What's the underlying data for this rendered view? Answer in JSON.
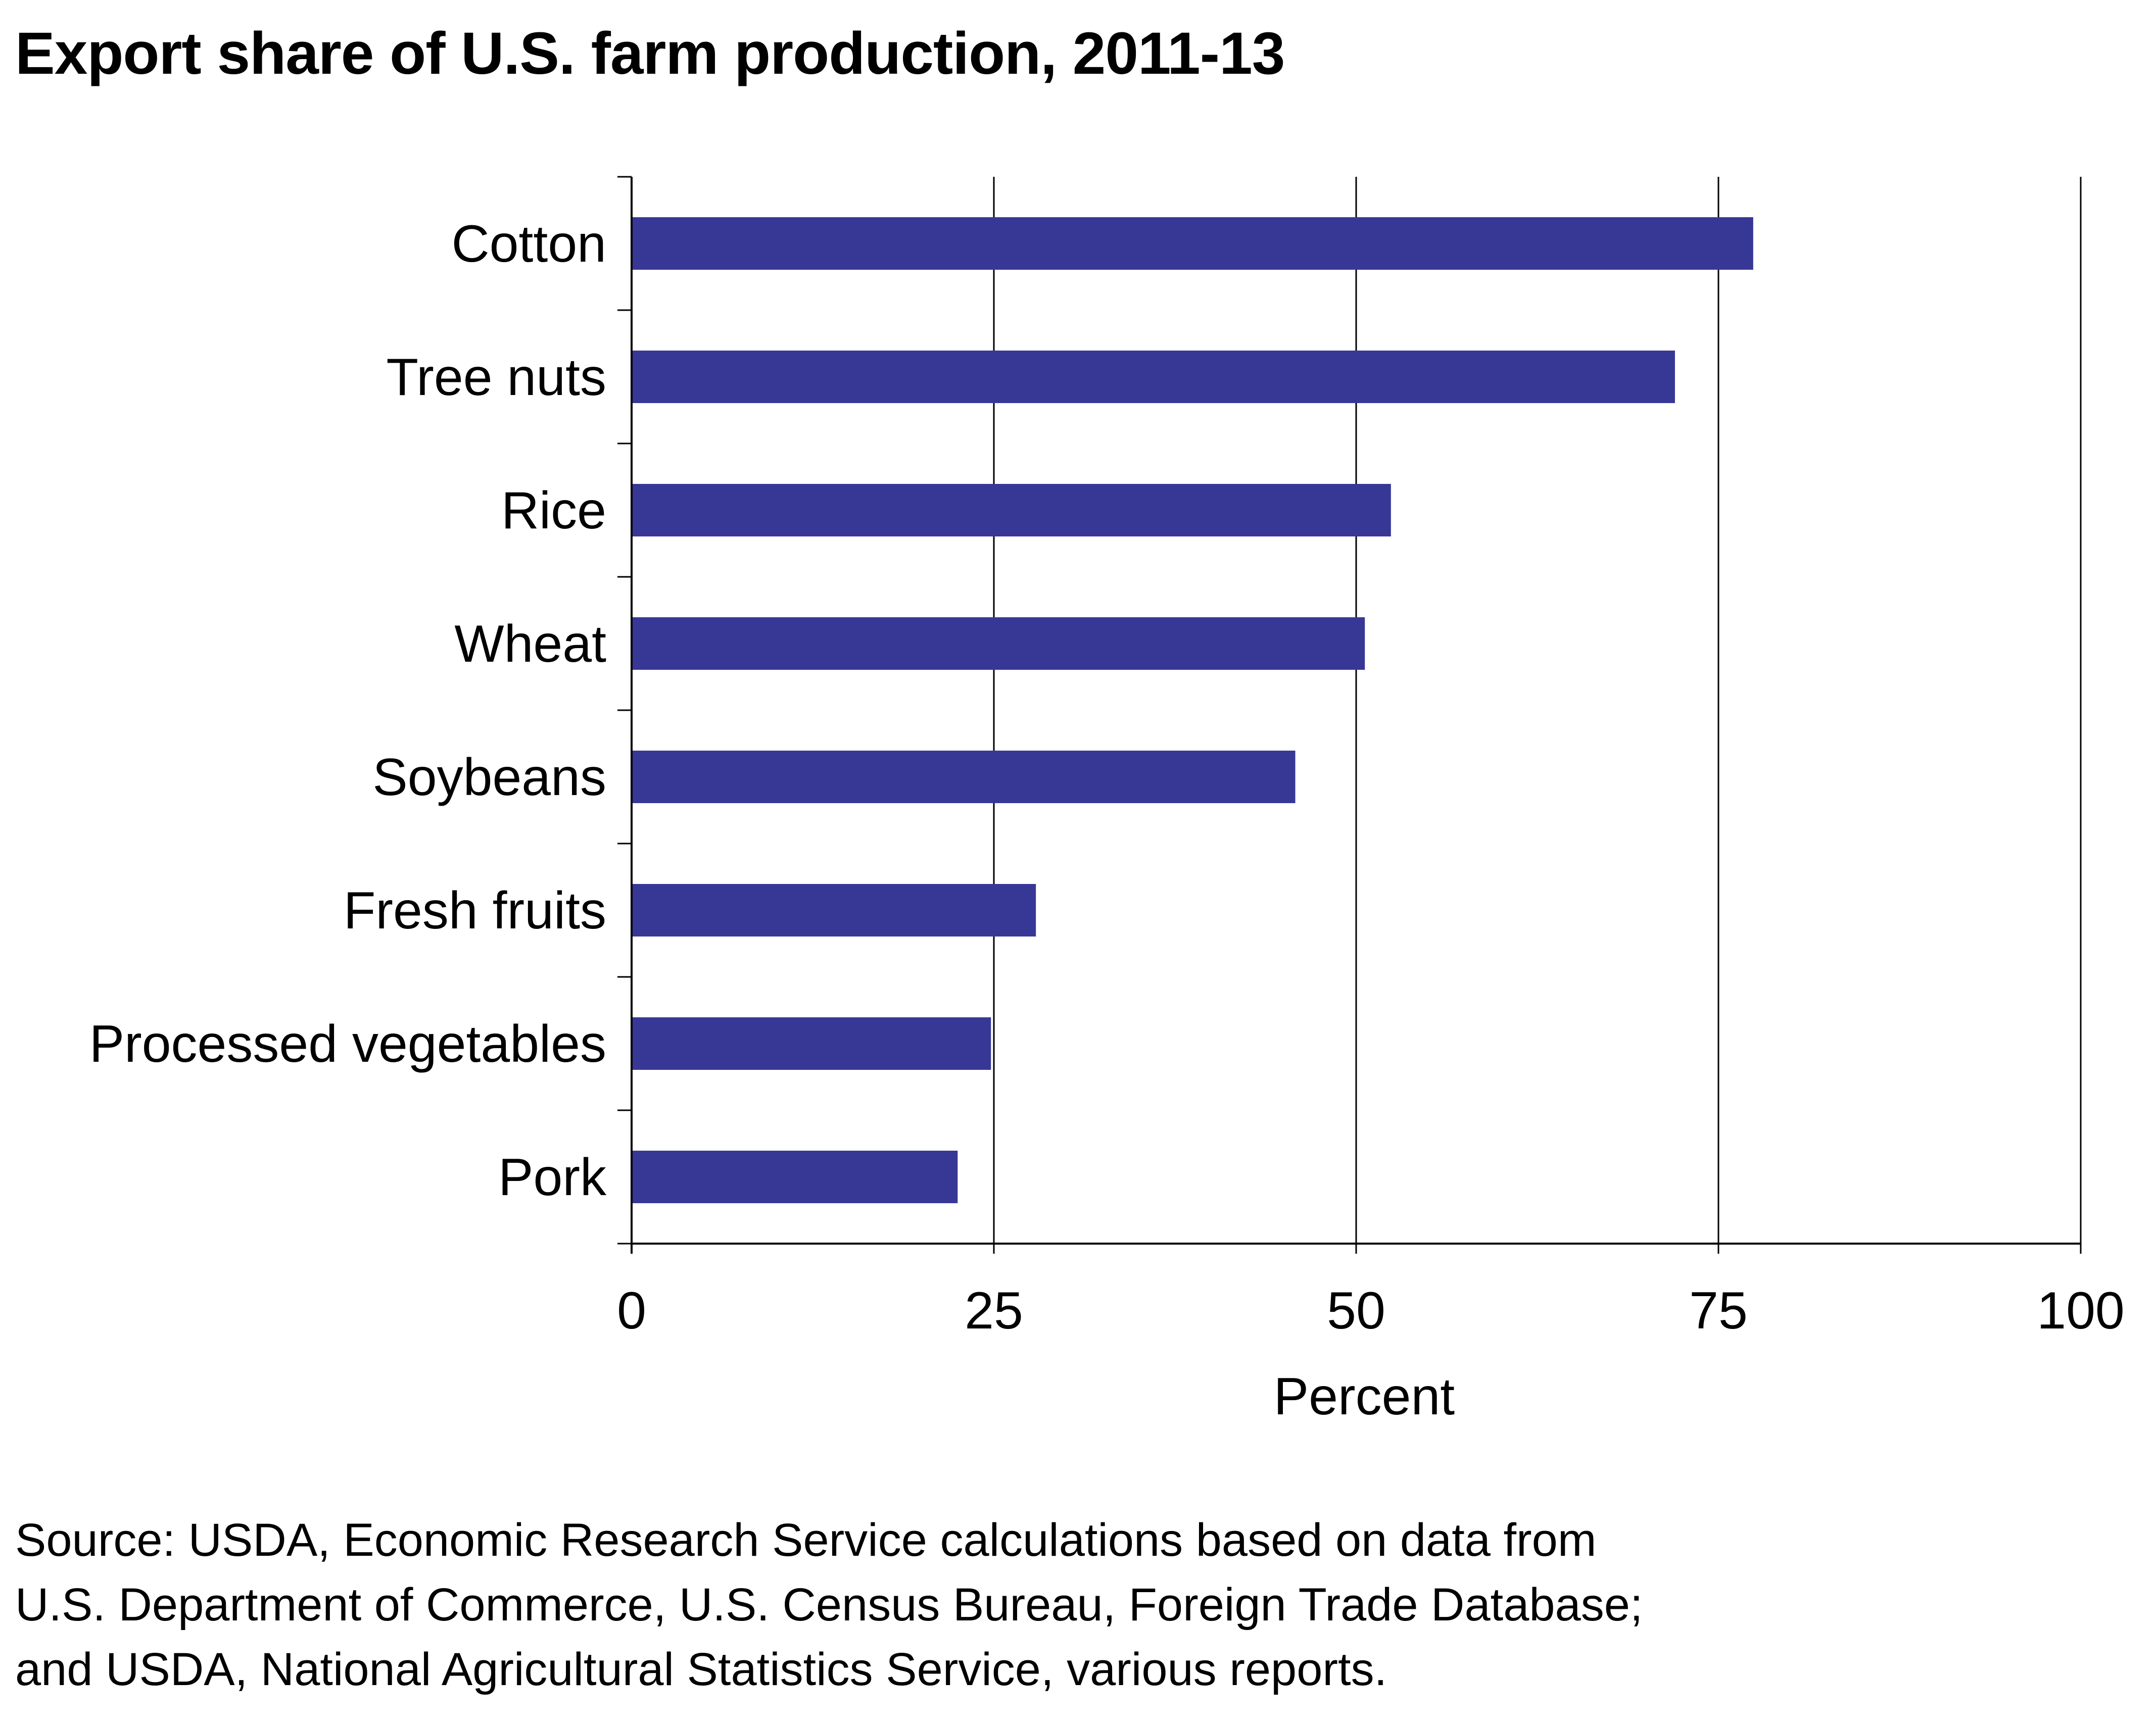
{
  "chart_data": {
    "type": "bar",
    "orientation": "horizontal",
    "title": "Export share of U.S. farm production, 2011-13",
    "xlabel": "Percent",
    "ylabel": "",
    "categories": [
      "Cotton",
      "Tree nuts",
      "Rice",
      "Wheat",
      "Soybeans",
      "Fresh fruits",
      "Processed vegetables",
      "Pork"
    ],
    "values": [
      77.4,
      72.0,
      52.4,
      50.6,
      45.8,
      27.9,
      24.8,
      22.5
    ],
    "xlim": [
      0,
      100
    ],
    "xticks": [
      "0",
      "25",
      "50",
      "75",
      "100"
    ],
    "xtick_values": [
      0,
      25,
      50,
      75,
      100
    ],
    "grid": "vertical",
    "colors": {
      "bar": "#373896",
      "grid": "#000000"
    }
  },
  "source_lines": [
    "Source: USDA, Economic Research Service calculations based on data from",
    "U.S. Department of Commerce, U.S. Census Bureau, Foreign Trade Database;",
    "and USDA, National Agricultural Statistics Service, various reports."
  ]
}
